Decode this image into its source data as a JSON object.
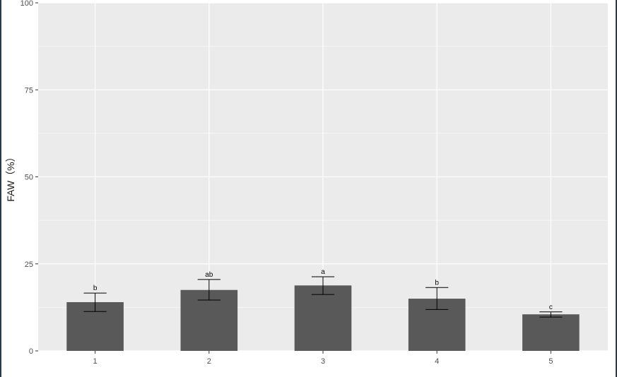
{
  "chart_data": {
    "type": "bar",
    "xlabel": "",
    "ylabel": "FAW（%）",
    "ylim": [
      0,
      100
    ],
    "yticks": [
      "0",
      "25",
      "50",
      "75",
      "100"
    ],
    "categories": [
      "1",
      "2",
      "3",
      "4",
      "5"
    ],
    "values": [
      14,
      17.5,
      18.8,
      15,
      10.5
    ],
    "error": [
      [
        11.3,
        16.6
      ],
      [
        14.6,
        20.5
      ],
      [
        16.2,
        21.3
      ],
      [
        11.9,
        18.2
      ],
      [
        9.7,
        11.2
      ]
    ],
    "significance_labels": [
      "b",
      "ab",
      "a",
      "b",
      "c"
    ],
    "grid": true,
    "colors": {
      "panel_bg": "#ebebeb",
      "grid_major": "#ffffff",
      "bar": "#595959",
      "errorbar": "#000000"
    }
  }
}
